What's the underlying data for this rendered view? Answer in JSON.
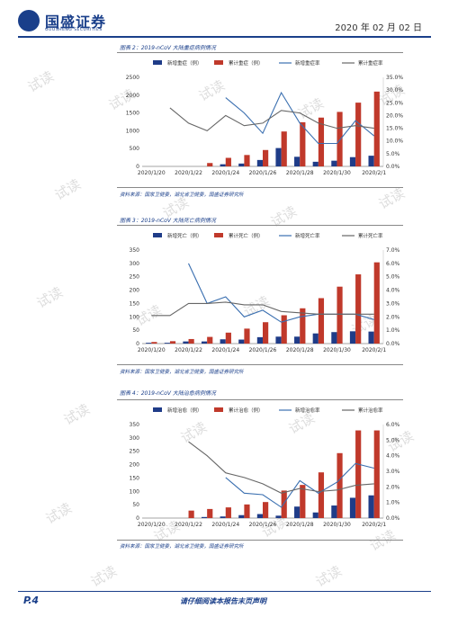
{
  "header": {
    "logo_text": "国盛证券",
    "logo_sub": "GUOSHENG SECURITIES",
    "date": "2020 年 02 月 02 日"
  },
  "watermark": "试读",
  "figures": [
    {
      "caption": "图表 2：2019-nCoV 大陆重症病例情况",
      "source": "资料来源：国家卫健委，湖北省卫健委，国盛证券研究所"
    },
    {
      "caption": "图表 3：2019-nCoV 大陆死亡病例情况",
      "source": "资料来源：国家卫健委，湖北省卫健委，国盛证券研究所"
    },
    {
      "caption": "图表 4：2019-nCoV 大陆治愈病例情况",
      "source": "资料来源：国家卫健委，湖北省卫健委，国盛证券研究所"
    }
  ],
  "chart_data": [
    {
      "type": "bar",
      "categories": [
        "2020/1/20",
        "2020/1/21",
        "2020/1/22",
        "2020/1/23",
        "2020/1/24",
        "2020/1/25",
        "2020/1/26",
        "2020/1/27",
        "2020/1/28",
        "2020/1/29",
        "2020/1/30",
        "2020/1/31",
        "2020/2/1"
      ],
      "x_tick_labels": [
        "2020/1/20",
        "2020/1/22",
        "2020/1/24",
        "2020/1/26",
        "2020/1/28",
        "2020/1/30",
        "2020/2/1"
      ],
      "series": [
        {
          "name": "新增重症（例）",
          "kind": "bar",
          "axis": "left",
          "color": "#1f3c88",
          "values": [
            0,
            0,
            0,
            0,
            60,
            80,
            180,
            515,
            270,
            130,
            160,
            260,
            300
          ]
        },
        {
          "name": "累计重症（例）",
          "kind": "bar",
          "axis": "left",
          "color": "#c0392b",
          "values": [
            0,
            0,
            0,
            95,
            240,
            320,
            460,
            980,
            1240,
            1370,
            1530,
            1790,
            2100
          ]
        },
        {
          "name": "新增重症率",
          "kind": "line",
          "axis": "right",
          "color": "#3a6fb0",
          "values": [
            null,
            null,
            null,
            null,
            27,
            21,
            13,
            29,
            17,
            9,
            9,
            18,
            12
          ]
        },
        {
          "name": "累计重症率",
          "kind": "line",
          "axis": "right",
          "color": "#666666",
          "values": [
            null,
            23,
            17,
            14,
            20,
            16,
            17,
            22,
            21,
            17,
            15,
            16,
            15
          ]
        }
      ],
      "ylim": [
        0,
        2500
      ],
      "yticks": [
        0,
        500,
        1000,
        1500,
        2000,
        2500
      ],
      "ylim_right": [
        0,
        35
      ],
      "yticks_right": [
        "0.0%",
        "5.0%",
        "10.0%",
        "15.0%",
        "20.0%",
        "25.0%",
        "30.0%",
        "35.0%"
      ],
      "legend": "top"
    },
    {
      "type": "bar",
      "categories": [
        "2020/1/20",
        "2020/1/21",
        "2020/1/22",
        "2020/1/23",
        "2020/1/24",
        "2020/1/25",
        "2020/1/26",
        "2020/1/27",
        "2020/1/28",
        "2020/1/29",
        "2020/1/30",
        "2020/1/31",
        "2020/2/1"
      ],
      "x_tick_labels": [
        "2020/1/20",
        "2020/1/22",
        "2020/1/24",
        "2020/1/26",
        "2020/1/28",
        "2020/1/30",
        "2020/2/1"
      ],
      "series": [
        {
          "name": "新增死亡（例）",
          "kind": "bar",
          "axis": "left",
          "color": "#1f3c88",
          "values": [
            3,
            3,
            8,
            8,
            16,
            15,
            24,
            26,
            26,
            38,
            43,
            46,
            45
          ]
        },
        {
          "name": "累计死亡（例）",
          "kind": "bar",
          "axis": "left",
          "color": "#c0392b",
          "values": [
            6,
            9,
            17,
            25,
            41,
            56,
            80,
            106,
            132,
            170,
            213,
            259,
            304
          ]
        },
        {
          "name": "新增死亡率",
          "kind": "line",
          "axis": "right",
          "color": "#3a6fb0",
          "values": [
            null,
            null,
            6.0,
            3.0,
            3.5,
            2.0,
            2.5,
            1.6,
            2.0,
            2.2,
            2.2,
            2.2,
            1.8
          ]
        },
        {
          "name": "累计死亡率",
          "kind": "line",
          "axis": "right",
          "color": "#666666",
          "values": [
            2.1,
            2.1,
            3.0,
            3.0,
            3.1,
            2.9,
            2.9,
            2.4,
            2.3,
            2.2,
            2.2,
            2.2,
            2.2
          ]
        }
      ],
      "ylim": [
        0,
        350
      ],
      "yticks": [
        0,
        50,
        100,
        150,
        200,
        250,
        300,
        350
      ],
      "ylim_right": [
        0,
        7
      ],
      "yticks_right": [
        "0.0%",
        "1.0%",
        "2.0%",
        "3.0%",
        "4.0%",
        "5.0%",
        "6.0%",
        "7.0%"
      ],
      "legend": "top"
    },
    {
      "type": "bar",
      "categories": [
        "2020/1/20",
        "2020/1/21",
        "2020/1/22",
        "2020/1/23",
        "2020/1/24",
        "2020/1/25",
        "2020/1/26",
        "2020/1/27",
        "2020/1/28",
        "2020/1/29",
        "2020/1/30",
        "2020/1/31",
        "2020/2/1"
      ],
      "x_tick_labels": [
        "2020/1/20",
        "2020/1/22",
        "2020/1/24",
        "2020/1/26",
        "2020/1/28",
        "2020/1/30",
        "2020/2/1"
      ],
      "series": [
        {
          "name": "新增治愈（例）",
          "kind": "bar",
          "axis": "left",
          "color": "#1f3c88",
          "values": [
            0,
            0,
            0,
            4,
            6,
            11,
            15,
            9,
            43,
            21,
            47,
            76,
            85
          ]
        },
        {
          "name": "累计治愈（例）",
          "kind": "bar",
          "axis": "left",
          "color": "#c0392b",
          "values": [
            0,
            0,
            28,
            34,
            40,
            51,
            60,
            103,
            124,
            171,
            243,
            328,
            328
          ]
        },
        {
          "name": "新增治愈率",
          "kind": "line",
          "axis": "right",
          "color": "#3a6fb0",
          "values": [
            null,
            null,
            null,
            null,
            2.6,
            1.6,
            1.5,
            0.7,
            2.4,
            1.6,
            2.3,
            3.5,
            3.2
          ]
        },
        {
          "name": "累计治愈率",
          "kind": "line",
          "axis": "right",
          "color": "#666666",
          "values": [
            null,
            null,
            4.9,
            4.0,
            2.9,
            2.6,
            2.2,
            1.6,
            1.9,
            1.7,
            1.8,
            2.1,
            2.2
          ]
        }
      ],
      "ylim": [
        0,
        350
      ],
      "yticks": [
        0,
        50,
        100,
        150,
        200,
        250,
        300,
        350
      ],
      "ylim_right": [
        0,
        6
      ],
      "yticks_right": [
        "0.0%",
        "1.0%",
        "2.0%",
        "3.0%",
        "4.0%",
        "5.0%",
        "6.0%"
      ],
      "legend": "top"
    }
  ],
  "footer": {
    "page": "P.4",
    "disclaimer": "请仔细阅读本报告末页声明"
  }
}
